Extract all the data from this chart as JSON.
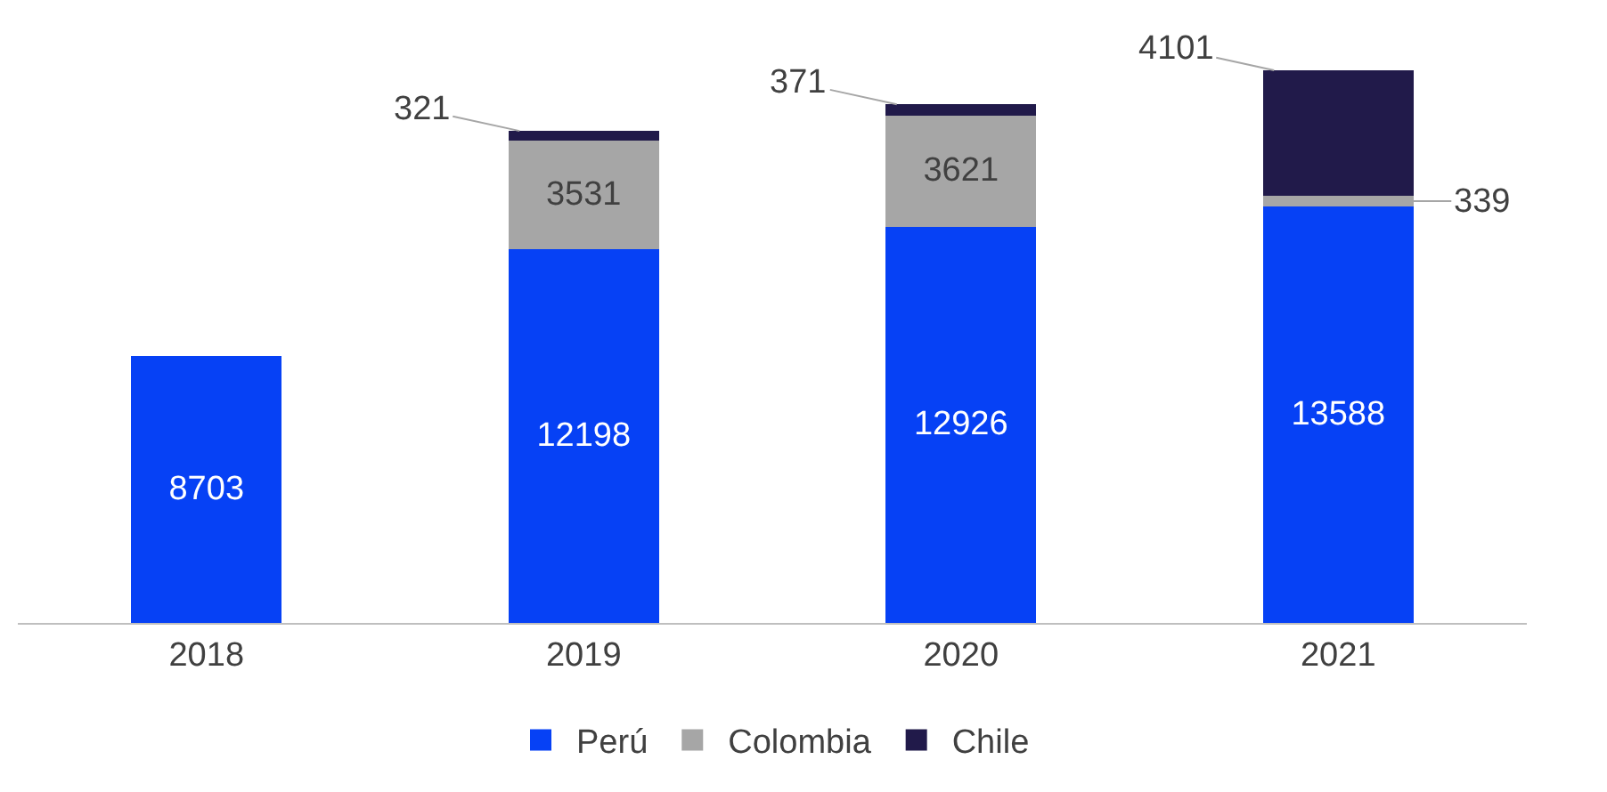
{
  "chart_data": {
    "type": "bar",
    "stacked": true,
    "data_labels": true,
    "legend": "bottom",
    "categories": [
      "2018",
      "2019",
      "2020",
      "2021"
    ],
    "series": [
      {
        "name": "Perú",
        "color": "#0641f5",
        "values": [
          8703,
          12198,
          12926,
          13588
        ]
      },
      {
        "name": "Colombia",
        "color": "#a6a6a6",
        "values": [
          null,
          3531,
          3621,
          339
        ]
      },
      {
        "name": "Chile",
        "color": "#211a4a",
        "values": [
          null,
          321,
          371,
          4101
        ]
      }
    ]
  }
}
